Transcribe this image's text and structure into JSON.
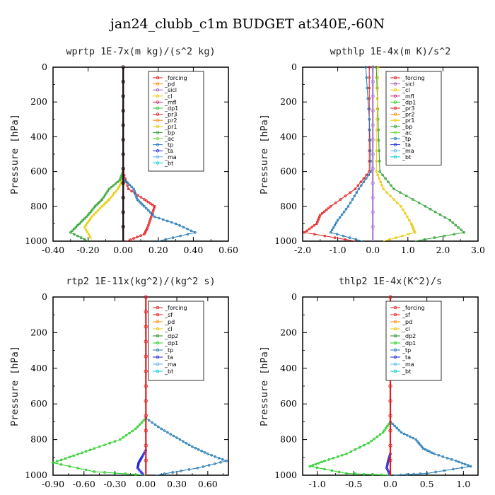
{
  "figure": {
    "title": "jan24_clubb_c1m  BUDGET at340E,-60N"
  },
  "chart_data": [
    {
      "type": "line",
      "title": "wprtp  1E-7x(m kg)/(s^2 kg)",
      "ylabel": "Pressure [hPa]",
      "xlim": [
        -0.4,
        0.6
      ],
      "ylim": [
        1000,
        0
      ],
      "xticks": [
        "-0.40",
        "-0.20",
        "0.00",
        "0.20",
        "0.40",
        "0.60"
      ],
      "xtick_values": [
        -0.4,
        -0.2,
        0.0,
        0.2,
        0.4,
        0.6
      ],
      "yticks": [
        "0",
        "200",
        "400",
        "600",
        "800",
        "1000"
      ],
      "ytick_values": [
        0,
        200,
        400,
        600,
        800,
        1000
      ],
      "legend": [
        "_forcing",
        "_pd",
        "_sicl",
        "_cl",
        "_mfl",
        "_dp1",
        "_pr3",
        "_pr2",
        "_pr1",
        "_bp",
        "_ac",
        "_tp",
        "_ta",
        "_ma",
        "_bt"
      ],
      "series": [
        {
          "name": "_bp",
          "color": "#2ca02c",
          "points": [
            [
              0,
              600
            ],
            [
              -0.02,
              650
            ],
            [
              -0.08,
              700
            ],
            [
              -0.12,
              760
            ],
            [
              -0.16,
              800
            ],
            [
              -0.2,
              850
            ],
            [
              -0.25,
              900
            ],
            [
              -0.3,
              950
            ],
            [
              -0.2,
              1000
            ]
          ]
        },
        {
          "name": "_pr1",
          "color": "#e8c800",
          "points": [
            [
              0,
              640
            ],
            [
              -0.03,
              700
            ],
            [
              -0.08,
              760
            ],
            [
              -0.12,
              800
            ],
            [
              -0.18,
              860
            ],
            [
              -0.22,
              920
            ],
            [
              -0.18,
              990
            ]
          ]
        },
        {
          "name": "_pr3",
          "color": "#e41a1c",
          "points": [
            [
              0,
              600
            ],
            [
              0.03,
              700
            ],
            [
              0.12,
              760
            ],
            [
              0.18,
              800
            ],
            [
              0.16,
              860
            ],
            [
              0.14,
              920
            ],
            [
              0.12,
              960
            ],
            [
              0.02,
              1000
            ]
          ]
        },
        {
          "name": "_tp",
          "color": "#1f78b4",
          "points": [
            [
              0,
              640
            ],
            [
              0.06,
              700
            ],
            [
              0.08,
              760
            ],
            [
              0.12,
              800
            ],
            [
              0.18,
              860
            ],
            [
              0.3,
              900
            ],
            [
              0.41,
              950
            ],
            [
              0.2,
              1000
            ]
          ]
        },
        {
          "name": "_mfl",
          "color": "#cc2277",
          "points": [
            [
              0,
              0
            ],
            [
              0,
              1000
            ]
          ]
        },
        {
          "name": "_forcing",
          "color": "#111111",
          "points": [
            [
              0,
              0
            ],
            [
              0,
              1000
            ]
          ]
        }
      ]
    },
    {
      "type": "line",
      "title": "wpthlp  1E-4x(m K)/s^2",
      "ylabel": "Pressure [hPa]",
      "xlim": [
        -2.0,
        3.0
      ],
      "ylim": [
        1000,
        0
      ],
      "xticks": [
        "-2.0",
        "-1.0",
        "0.0",
        "1.0",
        "2.0",
        "3.0"
      ],
      "xtick_values": [
        -2.0,
        -1.0,
        0.0,
        1.0,
        2.0,
        3.0
      ],
      "yticks": [
        "0",
        "200",
        "400",
        "600",
        "800",
        "1000"
      ],
      "ytick_values": [
        0,
        200,
        400,
        600,
        800,
        1000
      ],
      "legend": [
        "_forcing",
        "_sicl",
        "_cl",
        "_mfl",
        "_dp1",
        "_pr3",
        "_pr2",
        "_pr1",
        "_bp",
        "_ac",
        "_tp",
        "_ta",
        "_ma",
        "_bt"
      ],
      "series": [
        {
          "name": "_bp",
          "color": "#2ca02c",
          "points": [
            [
              0.1,
              0
            ],
            [
              0.15,
              300
            ],
            [
              0.2,
              600
            ],
            [
              0.6,
              700
            ],
            [
              1.5,
              800
            ],
            [
              2.2,
              880
            ],
            [
              2.6,
              950
            ],
            [
              1.2,
              1000
            ]
          ]
        },
        {
          "name": "_pr1",
          "color": "#e8c800",
          "points": [
            [
              0.15,
              0
            ],
            [
              0.12,
              300
            ],
            [
              0.1,
              600
            ],
            [
              0.3,
              700
            ],
            [
              0.8,
              800
            ],
            [
              1.1,
              900
            ],
            [
              1.2,
              950
            ],
            [
              0.3,
              1000
            ]
          ]
        },
        {
          "name": "_pr3",
          "color": "#e41a1c",
          "points": [
            [
              -0.1,
              0
            ],
            [
              -0.1,
              300
            ],
            [
              -0.1,
              600
            ],
            [
              -0.5,
              700
            ],
            [
              -1.2,
              800
            ],
            [
              -1.5,
              850
            ],
            [
              -1.6,
              900
            ],
            [
              -1.95,
              950
            ],
            [
              -0.5,
              1000
            ]
          ]
        },
        {
          "name": "_tp",
          "color": "#1f78b4",
          "points": [
            [
              -0.2,
              0
            ],
            [
              -0.1,
              300
            ],
            [
              -0.05,
              600
            ],
            [
              -0.4,
              700
            ],
            [
              -0.7,
              800
            ],
            [
              -1.0,
              880
            ],
            [
              -1.2,
              950
            ],
            [
              -0.3,
              1000
            ]
          ]
        },
        {
          "name": "_forcing",
          "color": "#b07cd0",
          "points": [
            [
              0,
              0
            ],
            [
              0,
              1000
            ]
          ]
        }
      ]
    },
    {
      "type": "line",
      "title": "rtp2  1E-11x(kg^2)/(kg^2 s)",
      "ylabel": "Pressure [hPa]",
      "xlim": [
        -0.9,
        0.8
      ],
      "ylim": [
        1000,
        0
      ],
      "xticks": [
        "-0.90",
        "-0.60",
        "-0.30",
        "0.00",
        "0.30",
        "0.60"
      ],
      "xtick_values": [
        -0.9,
        -0.6,
        -0.3,
        0.0,
        0.3,
        0.6
      ],
      "yticks": [
        "0",
        "200",
        "400",
        "600",
        "800",
        "1000"
      ],
      "ytick_values": [
        0,
        200,
        400,
        600,
        800,
        1000
      ],
      "legend": [
        "_forcing",
        "_sf",
        "_pd",
        "_cl",
        "_dp2",
        "_dp1",
        "_tp",
        "_ta",
        "_ma",
        "_bt"
      ],
      "series": [
        {
          "name": "_dp1",
          "color": "#22cc22",
          "points": [
            [
              0,
              680
            ],
            [
              -0.1,
              740
            ],
            [
              -0.25,
              800
            ],
            [
              -0.5,
              850
            ],
            [
              -0.7,
              890
            ],
            [
              -0.9,
              930
            ],
            [
              -0.5,
              980
            ],
            [
              0,
              1000
            ]
          ]
        },
        {
          "name": "_tp",
          "color": "#1f78b4",
          "points": [
            [
              0,
              680
            ],
            [
              0.15,
              740
            ],
            [
              0.3,
              790
            ],
            [
              0.45,
              840
            ],
            [
              0.6,
              880
            ],
            [
              0.78,
              920
            ],
            [
              0.5,
              960
            ],
            [
              0.1,
              1000
            ]
          ]
        },
        {
          "name": "_ta",
          "color": "#1e22dd",
          "points": [
            [
              0,
              860
            ],
            [
              -0.04,
              900
            ],
            [
              -0.07,
              930
            ],
            [
              -0.08,
              960
            ],
            [
              -0.02,
              1000
            ]
          ]
        },
        {
          "name": "_forcing",
          "color": "#e41a1c",
          "points": [
            [
              0,
              0
            ],
            [
              0,
              1000
            ]
          ]
        }
      ]
    },
    {
      "type": "line",
      "title": "thlp2  1E-4x(K^2)/s",
      "ylabel": "Pressure [hPa]",
      "xlim": [
        -1.2,
        1.2
      ],
      "ylim": [
        1000,
        0
      ],
      "xticks": [
        "-1.0",
        "-0.5",
        "0.0",
        "0.5",
        "1.0"
      ],
      "xtick_values": [
        -1.0,
        -0.5,
        0.0,
        0.5,
        1.0
      ],
      "yticks": [
        "0",
        "200",
        "400",
        "600",
        "800",
        "1000"
      ],
      "ytick_values": [
        0,
        200,
        400,
        600,
        800,
        1000
      ],
      "legend": [
        "_forcing",
        "_sf",
        "_pd",
        "_cl",
        "_dp2",
        "_dp1",
        "_tp",
        "_ta",
        "_ma",
        "_bt"
      ],
      "series": [
        {
          "name": "_dp1",
          "color": "#22cc22",
          "points": [
            [
              0,
              700
            ],
            [
              -0.1,
              760
            ],
            [
              -0.3,
              820
            ],
            [
              -0.6,
              880
            ],
            [
              -0.9,
              920
            ],
            [
              -1.1,
              950
            ],
            [
              -0.6,
              990
            ],
            [
              0,
              1000
            ]
          ]
        },
        {
          "name": "_tp",
          "color": "#1f78b4",
          "points": [
            [
              0,
              700
            ],
            [
              0.15,
              760
            ],
            [
              0.35,
              800
            ],
            [
              0.45,
              850
            ],
            [
              0.6,
              880
            ],
            [
              0.9,
              920
            ],
            [
              1.1,
              950
            ],
            [
              0.5,
              990
            ],
            [
              0.05,
              1000
            ]
          ]
        },
        {
          "name": "_ta",
          "color": "#1e22dd",
          "points": [
            [
              0,
              880
            ],
            [
              -0.03,
              920
            ],
            [
              -0.05,
              960
            ],
            [
              0,
              1000
            ]
          ]
        },
        {
          "name": "_forcing",
          "color": "#e41a1c",
          "points": [
            [
              0,
              0
            ],
            [
              0,
              1000
            ]
          ]
        }
      ]
    }
  ],
  "legend_colors": {
    "_forcing": "#e41a1c",
    "_pd": "#ff8c00",
    "_sicl": "#9b59b6",
    "_cl": "#e8c800",
    "_mfl": "#cc2277",
    "_dp1": "#22cc22",
    "_dp2": "#228b22",
    "_pr3": "#e41a1c",
    "_pr2": "#ff8c00",
    "_pr1": "#e8c800",
    "_bp": "#2ca02c",
    "_ac": "#66dd33",
    "_tp": "#1f78b4",
    "_ta": "#1e22dd",
    "_ma": "#5ab4e8",
    "_bt": "#00cccc",
    "_sf": "#e41a1c"
  }
}
